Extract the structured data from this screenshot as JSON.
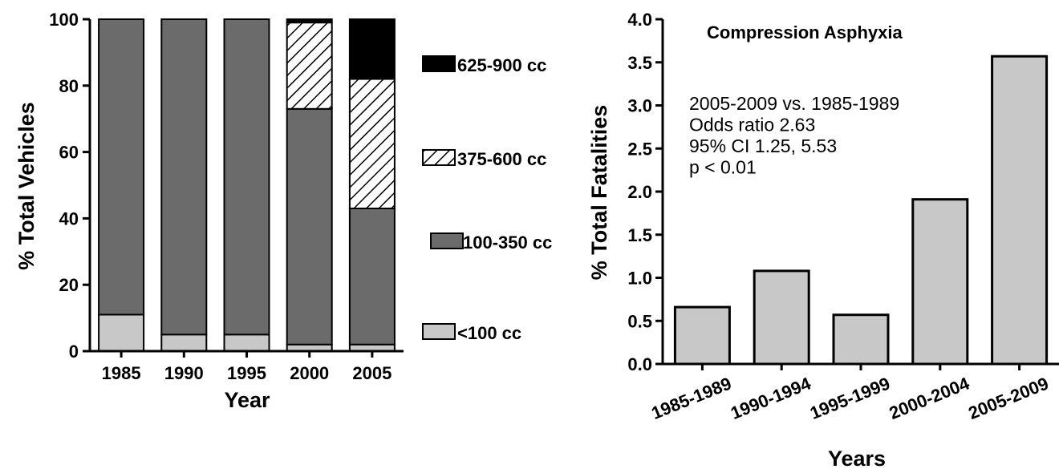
{
  "chart_data": [
    {
      "type": "bar",
      "stacked": true,
      "title": "",
      "xlabel": "Year",
      "ylabel": "% Total Vehicles",
      "categories": [
        "1985",
        "1990",
        "1995",
        "2000",
        "2005"
      ],
      "ylim": [
        0,
        100
      ],
      "yticks": [
        "0",
        "20",
        "40",
        "60",
        "80",
        "100"
      ],
      "series": [
        {
          "name": "<100 cc",
          "values": [
            11,
            5,
            5,
            2,
            2
          ],
          "fill": "light-gray"
        },
        {
          "name": "100-350 cc",
          "values": [
            89,
            95,
            95,
            71,
            41
          ],
          "fill": "dark-gray"
        },
        {
          "name": "375-600 cc",
          "values": [
            0,
            0,
            0,
            26,
            39
          ],
          "fill": "diagonal-hatch"
        },
        {
          "name": "625-900 cc",
          "values": [
            0,
            0,
            0,
            1,
            18
          ],
          "fill": "black"
        }
      ],
      "legend_position": "right",
      "colors": {
        "light": "#c8c8c8",
        "dark": "#6b6b6b",
        "black": "#000000"
      }
    },
    {
      "type": "bar",
      "title": "Compression Asphyxia",
      "xlabel": "Years",
      "ylabel": "% Total Fatalities",
      "categories": [
        "1985-1989",
        "1990-1994",
        "1995-1999",
        "2000-2004",
        "2005-2009"
      ],
      "values": [
        0.66,
        1.08,
        0.57,
        1.91,
        3.57
      ],
      "ylim": [
        0,
        4.0
      ],
      "yticks": [
        "0.0",
        "0.5",
        "1.0",
        "1.5",
        "2.0",
        "2.5",
        "3.0",
        "3.5",
        "4.0"
      ],
      "annotation": [
        "2005-2009 vs. 1985-1989",
        "Odds ratio 2.63",
        "95% CI 1.25, 5.53",
        "p < 0.01"
      ],
      "colors": {
        "bar": "#c8c8c8"
      }
    }
  ]
}
